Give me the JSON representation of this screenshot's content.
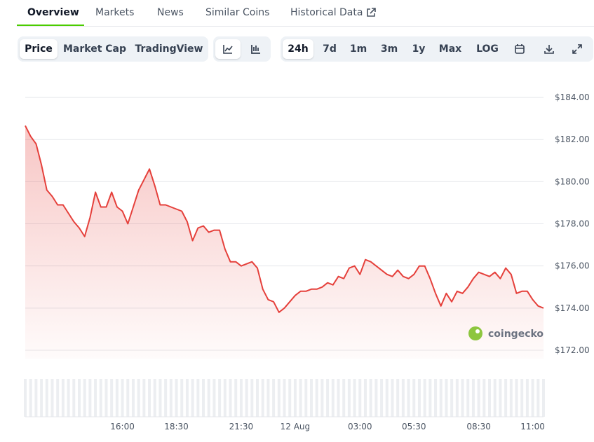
{
  "tabs": [
    "Overview",
    "Markets",
    "News",
    "Similar Coins",
    "Historical Data"
  ],
  "chart_views": [
    "Price",
    "Market Cap",
    "TradingView"
  ],
  "ranges": [
    "24h",
    "7d",
    "1m",
    "3m",
    "1y",
    "Max",
    "LOG"
  ],
  "watermark": "coingecko",
  "chart_data": {
    "type": "line",
    "categories": [
      null,
      null,
      null,
      null,
      null,
      null,
      null,
      null,
      null,
      null,
      null,
      null,
      null,
      null,
      null,
      null,
      null,
      null,
      "16:00",
      null,
      null,
      null,
      null,
      null,
      null,
      null,
      null,
      null,
      "18:30",
      null,
      null,
      null,
      null,
      null,
      null,
      null,
      null,
      null,
      null,
      null,
      "21:30",
      null,
      null,
      null,
      null,
      null,
      null,
      null,
      null,
      null,
      "12 Aug",
      null,
      null,
      null,
      null,
      null,
      null,
      null,
      null,
      null,
      null,
      null,
      "03:00",
      null,
      null,
      null,
      null,
      null,
      null,
      null,
      null,
      null,
      "05:30",
      null,
      null,
      null,
      null,
      null,
      null,
      null,
      null,
      null,
      null,
      null,
      "08:30",
      null,
      null,
      null,
      null,
      null,
      null,
      null,
      null,
      null,
      "11:00",
      null,
      null
    ],
    "series": [
      {
        "color": "#e5403b",
        "values": [
          182.66,
          182.15,
          181.8,
          180.8,
          179.6,
          179.3,
          178.9,
          178.9,
          178.5,
          178.1,
          177.8,
          177.4,
          178.3,
          179.5,
          178.8,
          178.8,
          179.5,
          178.8,
          178.6,
          178.0,
          178.8,
          179.6,
          180.1,
          180.6,
          179.8,
          178.9,
          178.9,
          178.8,
          178.7,
          178.6,
          178.1,
          177.2,
          177.8,
          177.9,
          177.6,
          177.7,
          177.7,
          176.8,
          176.2,
          176.2,
          176.0,
          176.1,
          176.2,
          175.9,
          174.9,
          174.4,
          174.3,
          173.8,
          174.0,
          174.3,
          174.6,
          174.8,
          174.8,
          174.9,
          174.9,
          175.0,
          175.2,
          175.1,
          175.5,
          175.4,
          175.9,
          176.0,
          175.6,
          176.3,
          176.2,
          176.0,
          175.8,
          175.6,
          175.5,
          175.8,
          175.5,
          175.4,
          175.6,
          176.0,
          176.0,
          175.4,
          174.7,
          174.1,
          174.7,
          174.3,
          174.8,
          174.7,
          175.0,
          175.4,
          175.7,
          175.6,
          175.5,
          175.7,
          175.4,
          175.9,
          175.6,
          174.7,
          174.8,
          174.8,
          174.4,
          174.1,
          174.0
        ]
      }
    ],
    "ylim": [
      171.6,
      185.3
    ],
    "yticks": [
      {
        "value": 172,
        "label": "$172.00"
      },
      {
        "value": 174,
        "label": "$174.00"
      },
      {
        "value": 176,
        "label": "$176.00"
      },
      {
        "value": 178,
        "label": "$178.00"
      },
      {
        "value": 180,
        "label": "$180.00"
      },
      {
        "value": 182,
        "label": "$182.00"
      },
      {
        "value": 184,
        "label": "$184.00"
      }
    ],
    "grid": true
  }
}
